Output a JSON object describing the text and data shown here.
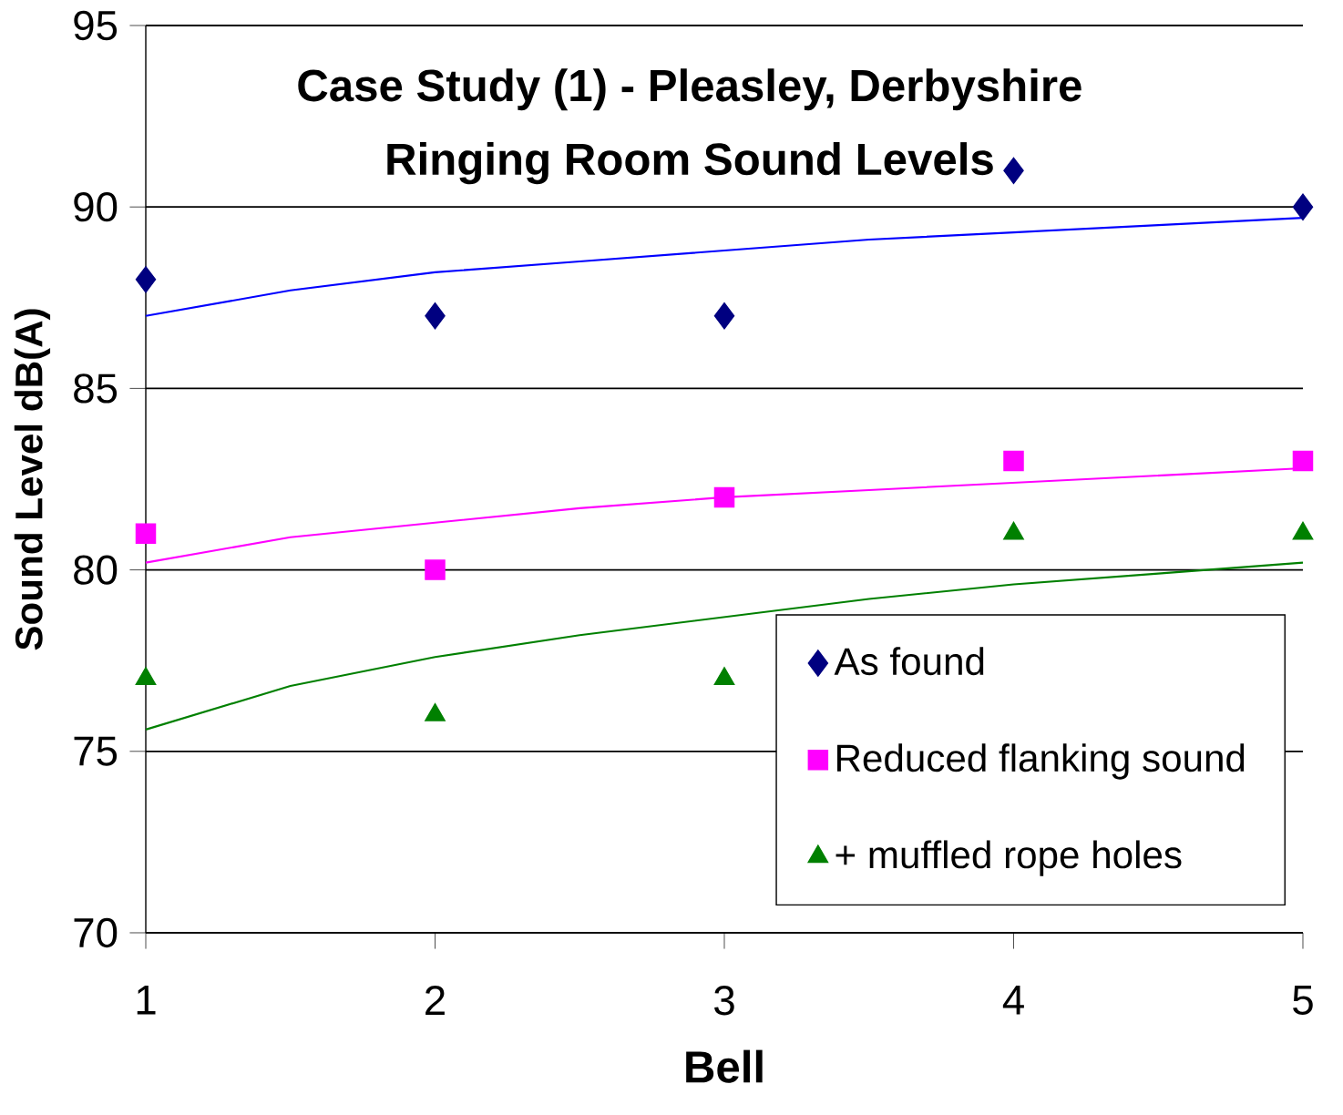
{
  "chart_data": {
    "type": "scatter",
    "title": "Case Study (1) - Pleasley, Derbyshire",
    "subtitle": "Ringing Room Sound Levels",
    "xlabel": "Bell",
    "ylabel": "Sound Level dB(A)",
    "x": [
      1,
      2,
      3,
      4,
      5
    ],
    "xlim": [
      1,
      5
    ],
    "xticks": [
      1,
      2,
      3,
      4,
      5
    ],
    "ylim": [
      70,
      95
    ],
    "yticks": [
      70,
      75,
      80,
      85,
      90,
      95
    ],
    "grid": "y",
    "legend": "bottom right",
    "series": [
      {
        "name": "As found",
        "color": "#000080",
        "marker": "diamond",
        "values": [
          88,
          87,
          87,
          91,
          90
        ]
      },
      {
        "name": "Reduced flanking sound",
        "color": "#ff00ff",
        "marker": "square",
        "values": [
          81,
          80,
          82,
          83,
          83
        ]
      },
      {
        "name": "+ muffled rope holes",
        "color": "#008000",
        "marker": "triangle",
        "values": [
          77,
          76,
          77,
          81,
          81
        ]
      },
      {
        "type": "line",
        "color": "#0000ff",
        "x": [
          1,
          1.5,
          2,
          2.5,
          3,
          3.5,
          4,
          4.5,
          5
        ],
        "values": [
          87.0,
          87.7,
          88.2,
          88.5,
          88.8,
          89.1,
          89.3,
          89.5,
          89.7
        ]
      },
      {
        "type": "line",
        "color": "#ff00ff",
        "x": [
          1,
          1.5,
          2,
          2.5,
          3,
          3.5,
          4,
          4.5,
          5
        ],
        "values": [
          80.2,
          80.9,
          81.3,
          81.7,
          82.0,
          82.2,
          82.4,
          82.6,
          82.8
        ]
      },
      {
        "type": "line",
        "color": "#008000",
        "x": [
          1,
          1.5,
          2,
          2.5,
          3,
          3.5,
          4,
          4.5,
          5
        ],
        "values": [
          75.6,
          76.8,
          77.6,
          78.2,
          78.7,
          79.2,
          79.6,
          79.9,
          80.2
        ]
      }
    ]
  }
}
